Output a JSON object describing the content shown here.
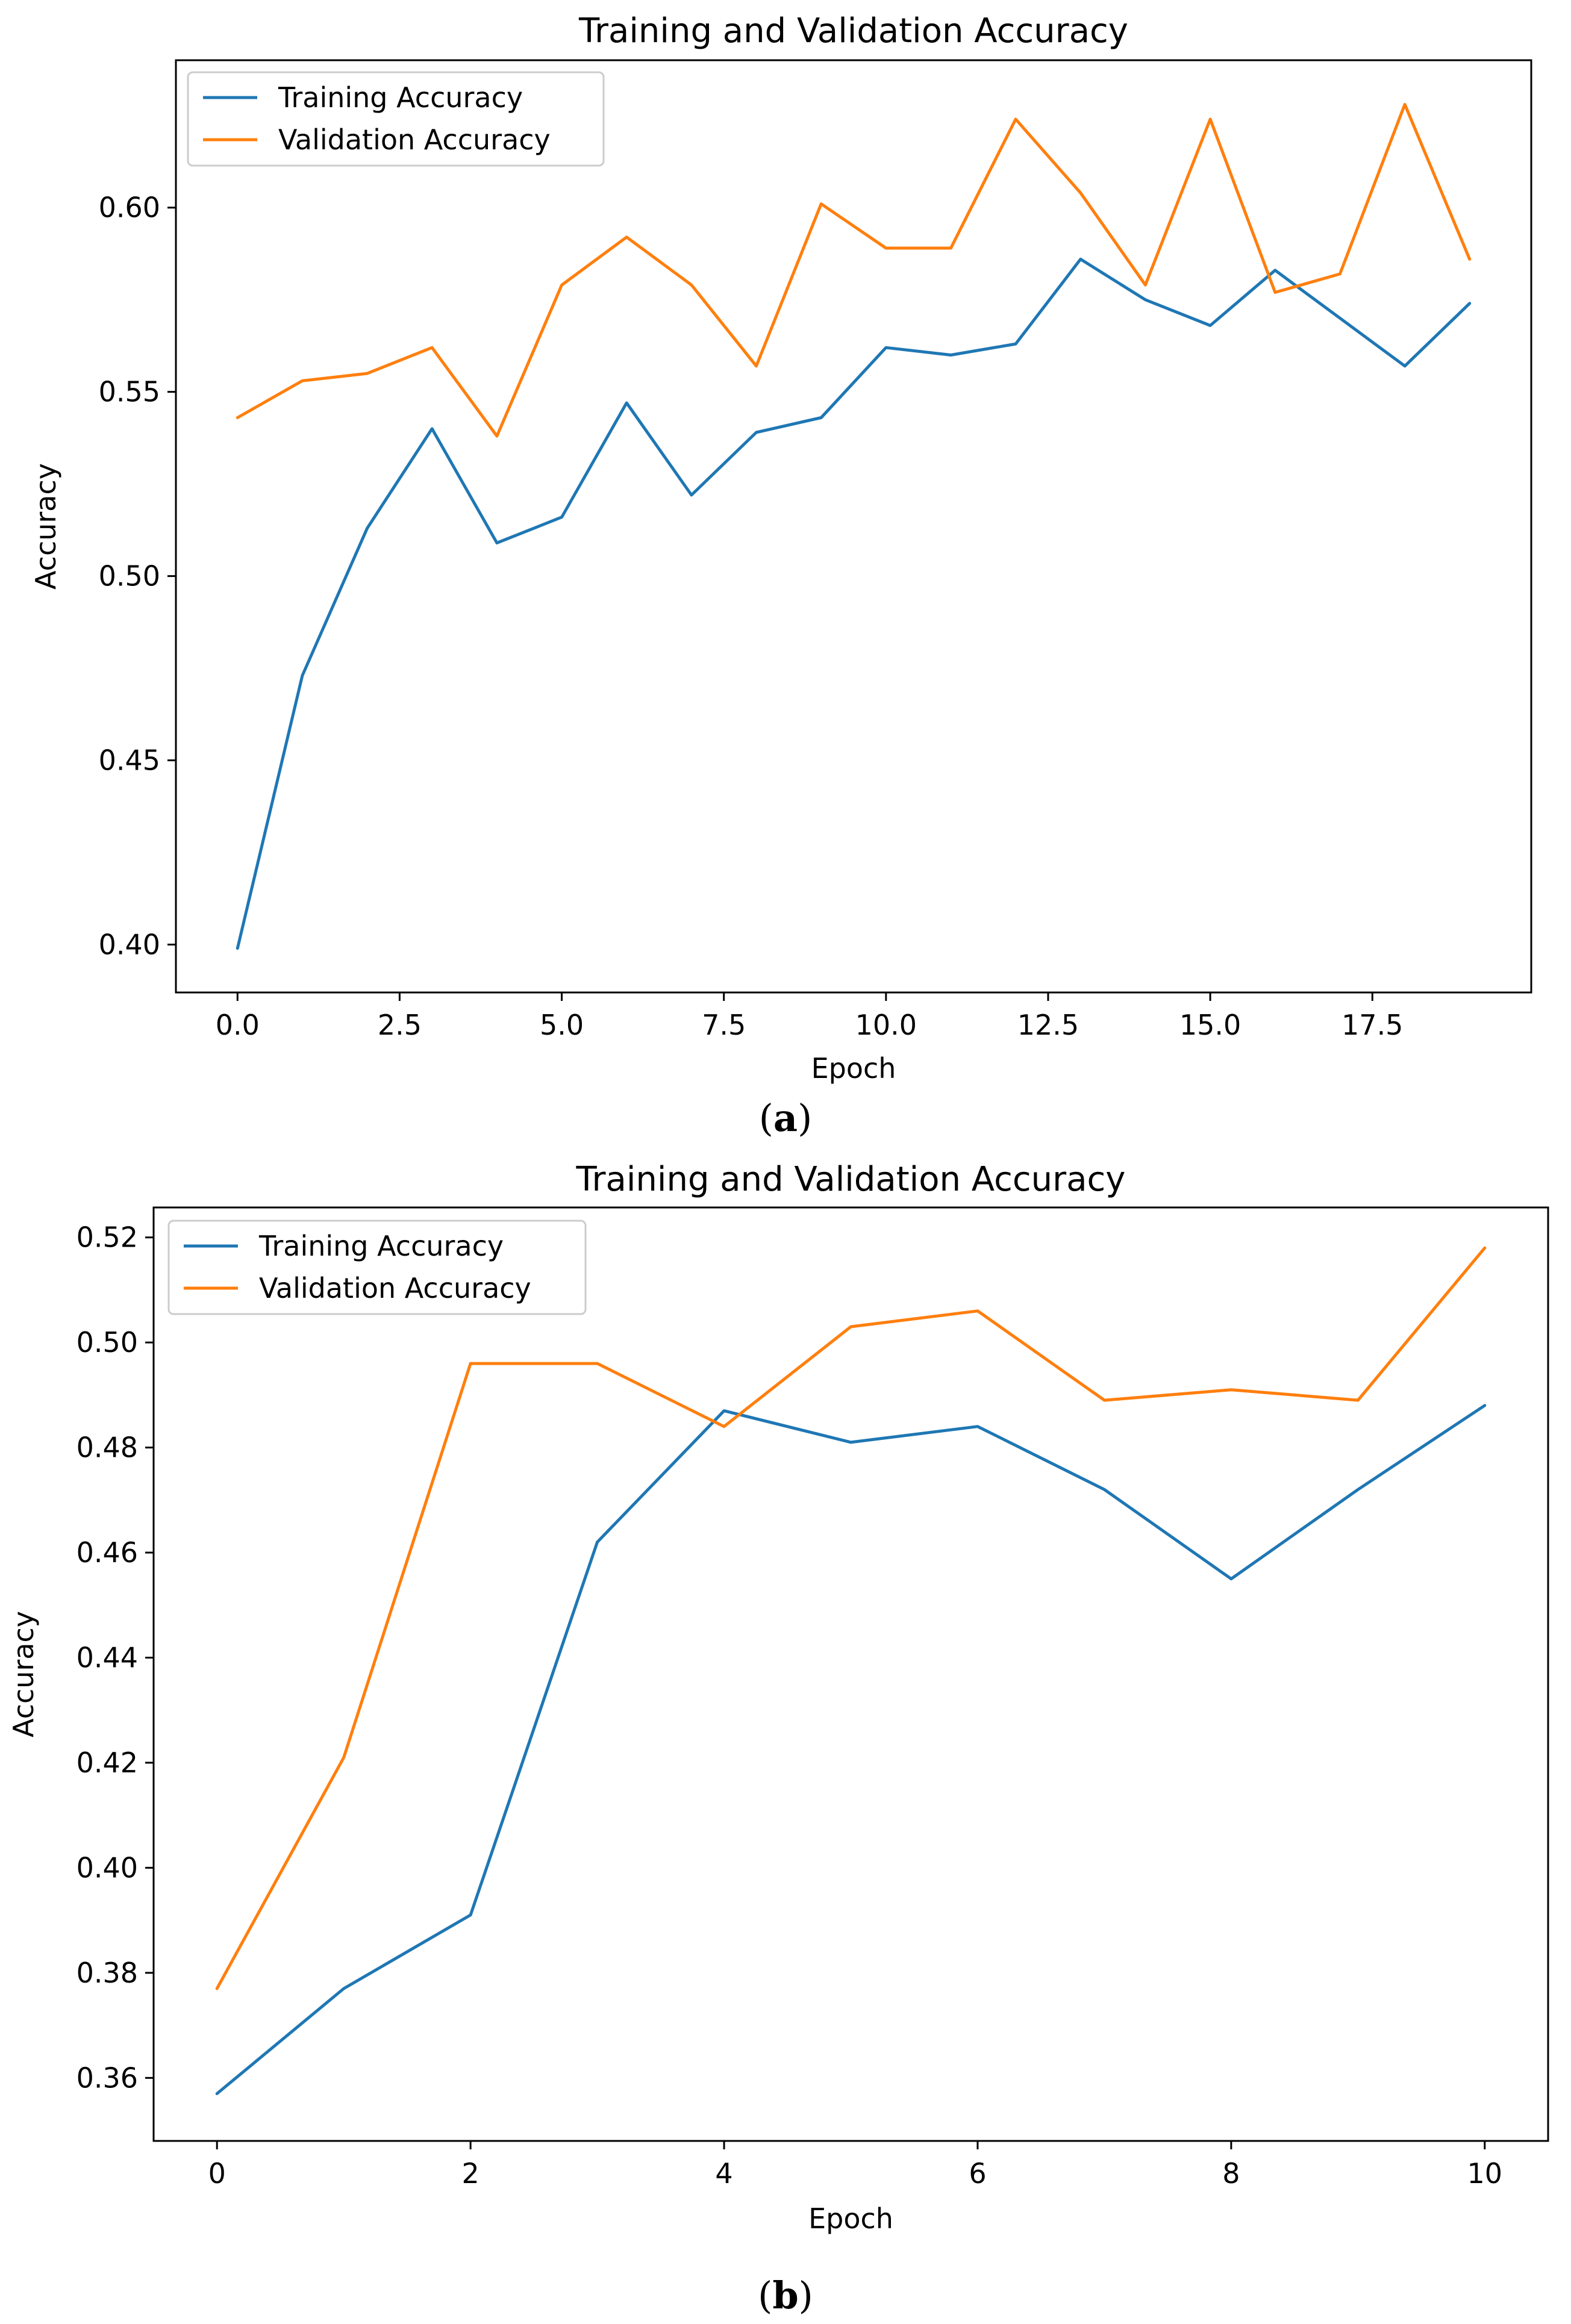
{
  "chart_data": [
    {
      "type": "line",
      "caption": "a",
      "title": "Training and Validation Accuracy",
      "xlabel": "Epoch",
      "ylabel": "Accuracy",
      "xlim": [
        -0.95,
        19.95
      ],
      "ylim": [
        0.387,
        0.64
      ],
      "xticks": [
        0.0,
        2.5,
        5.0,
        7.5,
        10.0,
        12.5,
        15.0,
        17.5
      ],
      "xtick_labels": [
        "0.0",
        "2.5",
        "5.0",
        "7.5",
        "10.0",
        "12.5",
        "15.0",
        "17.5"
      ],
      "yticks": [
        0.4,
        0.45,
        0.5,
        0.55,
        0.6
      ],
      "ytick_labels": [
        "0.40",
        "0.45",
        "0.50",
        "0.55",
        "0.60"
      ],
      "legend": "upper left",
      "x": [
        0,
        1,
        2,
        3,
        4,
        5,
        6,
        7,
        8,
        9,
        10,
        11,
        12,
        13,
        14,
        15,
        16,
        17,
        18,
        19
      ],
      "series": [
        {
          "name": "Training Accuracy",
          "color": "#1f77b4",
          "values": [
            0.399,
            0.473,
            0.513,
            0.54,
            0.509,
            0.516,
            0.547,
            0.522,
            0.539,
            0.543,
            0.562,
            0.56,
            0.563,
            0.586,
            0.575,
            0.568,
            0.583,
            0.57,
            0.557,
            0.574
          ]
        },
        {
          "name": "Validation Accuracy",
          "color": "#ff7f0e",
          "values": [
            0.543,
            0.553,
            0.555,
            0.562,
            0.538,
            0.579,
            0.592,
            0.579,
            0.557,
            0.601,
            0.589,
            0.589,
            0.624,
            0.604,
            0.579,
            0.624,
            0.577,
            0.582,
            0.628,
            0.586
          ]
        }
      ]
    },
    {
      "type": "line",
      "caption": "b",
      "title": "Training and Validation Accuracy",
      "xlabel": "Epoch",
      "ylabel": "Accuracy",
      "xlim": [
        -0.5,
        10.5
      ],
      "ylim": [
        0.348,
        0.5257
      ],
      "xticks": [
        0,
        2,
        4,
        6,
        8,
        10
      ],
      "xtick_labels": [
        "0",
        "2",
        "4",
        "6",
        "8",
        "10"
      ],
      "yticks": [
        0.36,
        0.38,
        0.4,
        0.42,
        0.44,
        0.46,
        0.48,
        0.5,
        0.52
      ],
      "ytick_labels": [
        "0.36",
        "0.38",
        "0.40",
        "0.42",
        "0.44",
        "0.46",
        "0.48",
        "0.50",
        "0.52"
      ],
      "legend": "upper left",
      "x": [
        0,
        1,
        2,
        3,
        4,
        5,
        6,
        7,
        8,
        9,
        10
      ],
      "series": [
        {
          "name": "Training Accuracy",
          "color": "#1f77b4",
          "values": [
            0.357,
            0.377,
            0.391,
            0.462,
            0.487,
            0.481,
            0.484,
            0.472,
            0.455,
            0.472,
            0.488
          ]
        },
        {
          "name": "Validation Accuracy",
          "color": "#ff7f0e",
          "values": [
            0.377,
            0.421,
            0.496,
            0.496,
            0.484,
            0.503,
            0.506,
            0.489,
            0.491,
            0.489,
            0.518
          ]
        }
      ]
    }
  ]
}
